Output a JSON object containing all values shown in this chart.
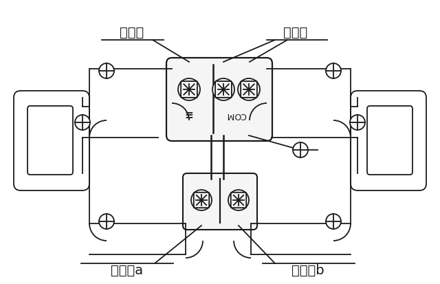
{
  "bg_color": "#ffffff",
  "line_color": "#1a1a1a",
  "label_jieduan": "接地端",
  "label_gongtong": "公共端",
  "label_diancitiea": "電磁鐵a",
  "label_diancitieib": "電磁鐵b",
  "com_text": "COM",
  "font_size_label": 14,
  "lw": 1.3,
  "figsize": [
    6.4,
    4.13
  ]
}
